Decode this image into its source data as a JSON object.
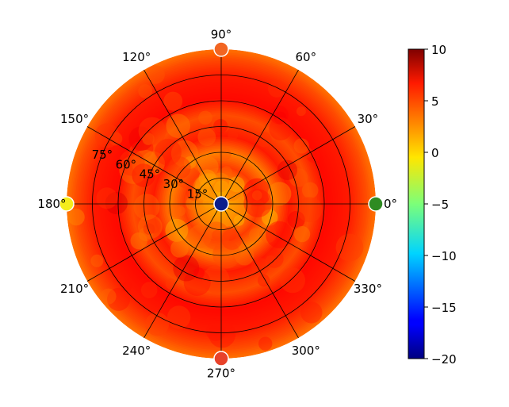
{
  "chart_data": {
    "type": "heatmap",
    "projection": "polar",
    "title": "",
    "angle_ticks": [
      "0°",
      "30°",
      "60°",
      "90°",
      "120°",
      "150°",
      "180°",
      "210°",
      "240°",
      "270°",
      "300°",
      "330°"
    ],
    "angle_tick_degrees": [
      0,
      30,
      60,
      90,
      120,
      150,
      180,
      210,
      240,
      270,
      300,
      330
    ],
    "radial_ticks": [
      "15°",
      "30°",
      "45°",
      "60°",
      "75°"
    ],
    "radial_tick_values": [
      15,
      30,
      45,
      60,
      75
    ],
    "radial_range": [
      0,
      90
    ],
    "grid": true,
    "colormap": "jet",
    "colorbar": {
      "range": [
        -20,
        10
      ],
      "tick_values": [
        10,
        5,
        0,
        -5,
        -10,
        -15,
        -20
      ],
      "tick_labels": [
        "10",
        "5",
        "0",
        "−5",
        "−10",
        "−15",
        "−20"
      ],
      "location": "right"
    },
    "field": {
      "description_values": "approximate gain (dB) at sampled elevation (radial, degrees from center) and azimuth",
      "radial_profile": [
        {
          "r": 0,
          "value": -20
        },
        {
          "r": 5,
          "value": 1.5
        },
        {
          "r": 15,
          "value": 2.5
        },
        {
          "r": 22,
          "value": 4.5
        },
        {
          "r": 30,
          "value": 2.5
        },
        {
          "r": 40,
          "value": 5.5
        },
        {
          "r": 52,
          "value": 4
        },
        {
          "r": 62,
          "value": 6
        },
        {
          "r": 75,
          "value": 5.5
        },
        {
          "r": 85,
          "value": 4
        },
        {
          "r": 90,
          "value": 3
        }
      ]
    },
    "edge_markers": [
      {
        "azimuth": 0,
        "value": -3,
        "color": "#2e8b22"
      },
      {
        "azimuth": 90,
        "value": 3,
        "color": "#f26522"
      },
      {
        "azimuth": 180,
        "value": 1,
        "color": "#f4ec1c"
      },
      {
        "azimuth": 270,
        "value": 6.5,
        "color": "#e8422a"
      },
      {
        "azimuth": null,
        "value": -20,
        "color": "#0a1e8c",
        "position": "center"
      }
    ]
  }
}
